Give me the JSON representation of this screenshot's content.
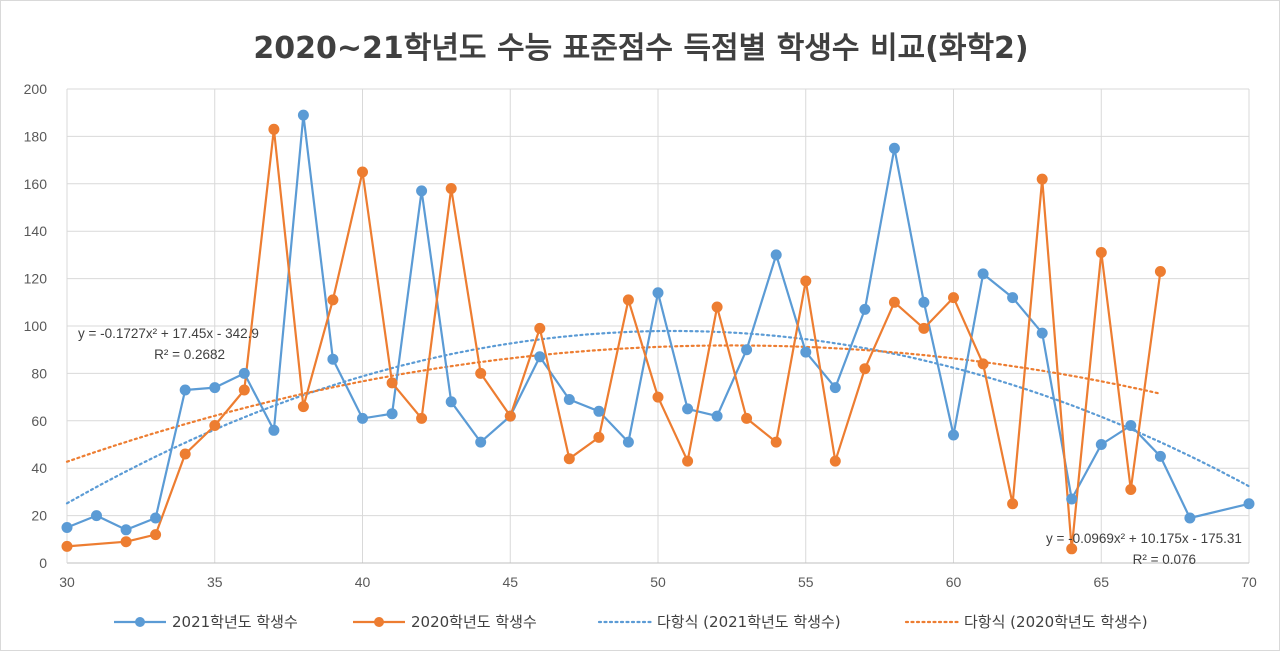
{
  "chart_data": {
    "type": "line",
    "title": "2020~21학년도 수능 표준점수 득점별 학생수 비교(화학2)",
    "xlim": [
      30,
      70
    ],
    "ylim": [
      0,
      200
    ],
    "x_ticks": [
      "30",
      "35",
      "40",
      "45",
      "50",
      "55",
      "60",
      "65",
      "70"
    ],
    "y_ticks": [
      "0",
      "20",
      "40",
      "60",
      "80",
      "100",
      "120",
      "140",
      "160",
      "180",
      "200"
    ],
    "grid": true,
    "legend_position": "bottom",
    "series": [
      {
        "name": "2021학년도 학생수",
        "color": "#5b9bd5",
        "x": [
          30,
          31,
          32,
          33,
          34,
          35,
          36,
          37,
          38,
          39,
          40,
          41,
          42,
          43,
          44,
          45,
          46,
          47,
          48,
          49,
          50,
          51,
          52,
          53,
          54,
          55,
          56,
          57,
          58,
          59,
          60,
          61,
          62,
          63,
          64,
          65,
          66,
          67,
          68,
          70
        ],
        "y": [
          15,
          20,
          14,
          19,
          73,
          74,
          80,
          56,
          189,
          86,
          61,
          63,
          157,
          68,
          51,
          62,
          87,
          69,
          64,
          51,
          114,
          65,
          62,
          90,
          130,
          89,
          74,
          107,
          175,
          110,
          54,
          122,
          112,
          97,
          27,
          50,
          58,
          45,
          19,
          25
        ]
      },
      {
        "name": "2020학년도 학생수",
        "color": "#ed7d31",
        "x": [
          30,
          32,
          33,
          34,
          35,
          36,
          37,
          38,
          39,
          40,
          41,
          42,
          43,
          44,
          45,
          46,
          47,
          48,
          49,
          50,
          51,
          52,
          53,
          54,
          55,
          56,
          57,
          58,
          59,
          60,
          61,
          62,
          63,
          64,
          65,
          66,
          67
        ],
        "y": [
          7,
          9,
          12,
          46,
          58,
          73,
          183,
          66,
          111,
          165,
          76,
          61,
          158,
          80,
          62,
          99,
          44,
          53,
          111,
          70,
          43,
          108,
          61,
          51,
          119,
          43,
          82,
          110,
          99,
          112,
          84,
          25,
          162,
          6,
          131,
          31,
          123
        ]
      }
    ],
    "trendlines": [
      {
        "name": "다항식 (2021학년도 학생수)",
        "color": "#5b9bd5",
        "coefficients": [
          -0.1727,
          17.45,
          -342.9
        ],
        "x_range": [
          30,
          70
        ],
        "equation": "y = -0.1727x² + 17.45x - 342.9",
        "r2": "R² = 0.2682"
      },
      {
        "name": "다항식 (2020학년도 학생수)",
        "color": "#ed7d31",
        "coefficients": [
          -0.0969,
          10.175,
          -175.31
        ],
        "x_range": [
          30,
          67
        ],
        "equation": "y = -0.0969x² + 10.175x - 175.31",
        "r2": "R² = 0.076"
      }
    ]
  }
}
